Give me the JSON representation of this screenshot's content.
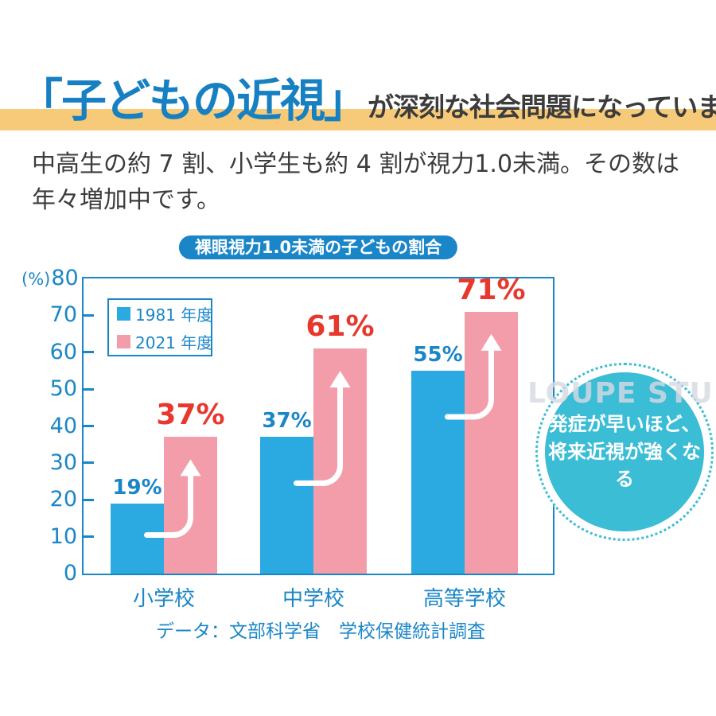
{
  "header": {
    "title_highlight": "「子どもの近視」",
    "title_rest": "が深刻な社会問題になっています。",
    "body_text": "中高生の約 7 割、小学生も約 4 割が視力1.0未満。その数は年々増加中です。"
  },
  "chart_data": {
    "type": "bar",
    "title": "裸眼視力1.0未満の子どもの割合",
    "categories": [
      "小学校",
      "中学校",
      "高等学校"
    ],
    "series": [
      {
        "name": "1981 年度",
        "values": [
          19,
          37,
          55
        ],
        "color": "#2BAAE2",
        "label_color": "#1A86C8"
      },
      {
        "name": "2021 年度",
        "values": [
          37,
          61,
          71
        ],
        "color": "#F29DA9",
        "label_color": "#E8382D"
      }
    ],
    "value_suffix": "%",
    "ylabel": "(%)",
    "ylim": [
      0,
      80
    ],
    "ytick_step": 10,
    "grid": false,
    "legend_position": "upper-left",
    "source": "データ：文部科学省　学校保健統計調査",
    "annotations": [
      "上昇を示す白い矢印"
    ]
  },
  "callout": {
    "text": "発症が早いほど、\n将来近視が強くなる"
  },
  "watermark": "LOUPE STUDIO",
  "colors": {
    "band_yellow": "#F6CA79",
    "title_blue": "#1780C2",
    "dark_text": "#3C3C3C",
    "chart_blue": "#1A86C8",
    "bar_blue": "#2BAAE2",
    "bar_pink": "#F29DA9",
    "red_label": "#E8382D",
    "teal": "#3ABDD5"
  }
}
